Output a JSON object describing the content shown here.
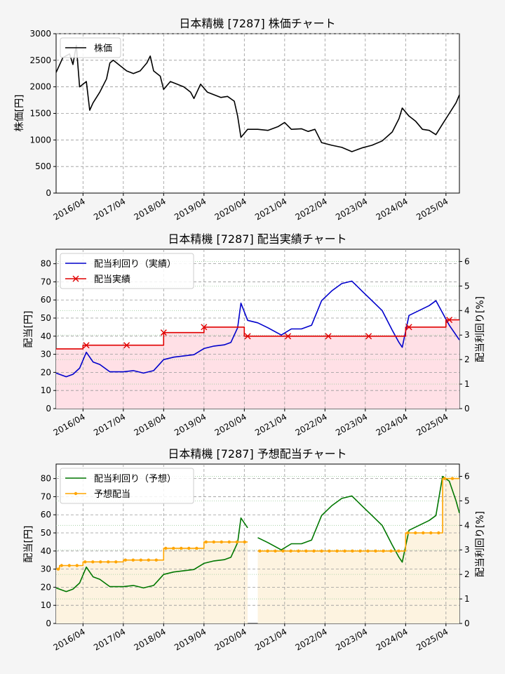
{
  "colors": {
    "price": "#000000",
    "yield_actual": "#0000cc",
    "dividend_actual": "#e00000",
    "yield_forecast": "#007700",
    "dividend_forecast": "#ffa500",
    "fill_actual": "#ffe0e6",
    "fill_forecast": "#fdf3e0",
    "background": "#f5f5f5"
  },
  "chart_data": [
    {
      "type": "line",
      "title": "日本精機 [7287]  株価チャート",
      "ylabel": "株価[円]",
      "ylim": [
        0,
        3000
      ],
      "yticks": [
        "0",
        "500",
        "1000",
        "1500",
        "2000",
        "2500",
        "3000"
      ],
      "xlim": [
        "2015-08",
        "2025-08"
      ],
      "xticks": [
        "2016/04",
        "2017/04",
        "2018/04",
        "2019/04",
        "2020/04",
        "2021/04",
        "2022/04",
        "2023/04",
        "2024/04",
        "2025/04"
      ],
      "grid": true,
      "legend": "top-left",
      "series": [
        {
          "name": "株価",
          "points": [
            [
              "2015-08",
              2270
            ],
            [
              "2015-10",
              2550
            ],
            [
              "2015-12",
              2620
            ],
            [
              "2016-01",
              2420
            ],
            [
              "2016-02",
              2780
            ],
            [
              "2016-03",
              2000
            ],
            [
              "2016-05",
              2100
            ],
            [
              "2016-06",
              1560
            ],
            [
              "2016-07",
              1700
            ],
            [
              "2016-09",
              1900
            ],
            [
              "2016-11",
              2150
            ],
            [
              "2016-12",
              2450
            ],
            [
              "2017-01",
              2500
            ],
            [
              "2017-03",
              2400
            ],
            [
              "2017-05",
              2300
            ],
            [
              "2017-07",
              2250
            ],
            [
              "2017-09",
              2300
            ],
            [
              "2017-11",
              2450
            ],
            [
              "2017-12",
              2580
            ],
            [
              "2018-01",
              2300
            ],
            [
              "2018-03",
              2200
            ],
            [
              "2018-04",
              1950
            ],
            [
              "2018-06",
              2100
            ],
            [
              "2018-08",
              2050
            ],
            [
              "2018-10",
              2000
            ],
            [
              "2018-12",
              1900
            ],
            [
              "2019-01",
              1780
            ],
            [
              "2019-03",
              2050
            ],
            [
              "2019-05",
              1900
            ],
            [
              "2019-07",
              1850
            ],
            [
              "2019-09",
              1800
            ],
            [
              "2019-11",
              1820
            ],
            [
              "2020-01",
              1730
            ],
            [
              "2020-02",
              1450
            ],
            [
              "2020-03",
              1050
            ],
            [
              "2020-05",
              1200
            ],
            [
              "2020-08",
              1200
            ],
            [
              "2020-11",
              1180
            ],
            [
              "2021-02",
              1250
            ],
            [
              "2021-04",
              1330
            ],
            [
              "2021-06",
              1200
            ],
            [
              "2021-09",
              1210
            ],
            [
              "2021-11",
              1160
            ],
            [
              "2022-01",
              1200
            ],
            [
              "2022-03",
              950
            ],
            [
              "2022-06",
              900
            ],
            [
              "2022-09",
              860
            ],
            [
              "2022-12",
              780
            ],
            [
              "2023-03",
              850
            ],
            [
              "2023-06",
              900
            ],
            [
              "2023-09",
              980
            ],
            [
              "2023-12",
              1150
            ],
            [
              "2024-02",
              1400
            ],
            [
              "2024-03",
              1600
            ],
            [
              "2024-05",
              1450
            ],
            [
              "2024-07",
              1350
            ],
            [
              "2024-09",
              1200
            ],
            [
              "2024-11",
              1180
            ],
            [
              "2025-01",
              1100
            ],
            [
              "2025-03",
              1300
            ],
            [
              "2025-05",
              1500
            ],
            [
              "2025-07",
              1700
            ],
            [
              "2025-08",
              1850
            ]
          ]
        }
      ]
    },
    {
      "type": "line",
      "title": "日本精機 [7287]  配当実績チャート",
      "ylabel": "配当[円]",
      "y2label": "配当利回り[%]",
      "ylim": [
        0,
        88
      ],
      "yticks": [
        "0",
        "10",
        "20",
        "30",
        "40",
        "50",
        "60",
        "70",
        "80"
      ],
      "y2lim": [
        0,
        6.5
      ],
      "y2ticks": [
        "0",
        "1",
        "2",
        "3",
        "4",
        "5",
        "6"
      ],
      "xlim": [
        "2015-08",
        "2025-08"
      ],
      "xticks": [
        "2016/04",
        "2017/04",
        "2018/04",
        "2019/04",
        "2020/04",
        "2021/04",
        "2022/04",
        "2023/04",
        "2024/04",
        "2025/04"
      ],
      "grid": true,
      "legend": "top-left",
      "series": [
        {
          "name": "配当利回り（実績）",
          "axis": "right",
          "points": [
            [
              "2015-08",
              1.45
            ],
            [
              "2015-11",
              1.3
            ],
            [
              "2016-01",
              1.4
            ],
            [
              "2016-03",
              1.65
            ],
            [
              "2016-05",
              2.3
            ],
            [
              "2016-07",
              1.9
            ],
            [
              "2016-09",
              1.8
            ],
            [
              "2016-12",
              1.5
            ],
            [
              "2017-04",
              1.5
            ],
            [
              "2017-07",
              1.55
            ],
            [
              "2017-10",
              1.45
            ],
            [
              "2018-01",
              1.55
            ],
            [
              "2018-04",
              2.0
            ],
            [
              "2018-07",
              2.1
            ],
            [
              "2018-10",
              2.15
            ],
            [
              "2019-01",
              2.2
            ],
            [
              "2019-04",
              2.45
            ],
            [
              "2019-07",
              2.55
            ],
            [
              "2019-10",
              2.6
            ],
            [
              "2019-12",
              2.7
            ],
            [
              "2020-02",
              3.3
            ],
            [
              "2020-03",
              4.3
            ],
            [
              "2020-05",
              3.6
            ],
            [
              "2020-08",
              3.5
            ],
            [
              "2020-11",
              3.3
            ],
            [
              "2021-03",
              3.0
            ],
            [
              "2021-06",
              3.25
            ],
            [
              "2021-09",
              3.25
            ],
            [
              "2021-12",
              3.4
            ],
            [
              "2022-03",
              4.4
            ],
            [
              "2022-06",
              4.8
            ],
            [
              "2022-09",
              5.1
            ],
            [
              "2022-12",
              5.2
            ],
            [
              "2023-03",
              4.8
            ],
            [
              "2023-06",
              4.4
            ],
            [
              "2023-09",
              4.0
            ],
            [
              "2023-12",
              3.2
            ],
            [
              "2024-02",
              2.7
            ],
            [
              "2024-03",
              2.5
            ],
            [
              "2024-05",
              3.8
            ],
            [
              "2024-08",
              4.0
            ],
            [
              "2024-11",
              4.2
            ],
            [
              "2025-01",
              4.4
            ],
            [
              "2025-03",
              3.9
            ],
            [
              "2025-05",
              3.4
            ],
            [
              "2025-07",
              3.0
            ],
            [
              "2025-08",
              2.8
            ]
          ]
        },
        {
          "name": "配当実績",
          "axis": "left",
          "step": true,
          "markers": [
            "2016-05",
            "2017-05",
            "2018-04",
            "2019-04",
            "2020-05",
            "2021-05",
            "2022-05",
            "2023-05",
            "2024-05",
            "2025-05"
          ],
          "points": [
            [
              "2015-08",
              33
            ],
            [
              "2016-04",
              35
            ],
            [
              "2018-04",
              42
            ],
            [
              "2019-04",
              45
            ],
            [
              "2020-04",
              40
            ],
            [
              "2024-04",
              45
            ],
            [
              "2025-04",
              49
            ],
            [
              "2025-08",
              49
            ]
          ]
        }
      ]
    },
    {
      "type": "line",
      "title": "日本精機 [7287]  予想配当チャート",
      "ylabel": "配当[円]",
      "y2label": "配当利回り[%]",
      "ylim": [
        0,
        88
      ],
      "yticks": [
        "0",
        "10",
        "20",
        "30",
        "40",
        "50",
        "60",
        "70",
        "80"
      ],
      "y2lim": [
        0,
        6.5
      ],
      "y2ticks": [
        "0",
        "1",
        "2",
        "3",
        "4",
        "5",
        "6"
      ],
      "xlim": [
        "2015-08",
        "2025-08"
      ],
      "xticks": [
        "2016/04",
        "2017/04",
        "2018/04",
        "2019/04",
        "2020/04",
        "2021/04",
        "2022/04",
        "2023/04",
        "2024/04",
        "2025/04"
      ],
      "grid": true,
      "legend": "top-left",
      "series": [
        {
          "name": "配当利回り（予想）",
          "axis": "right",
          "segments": [
            [
              [
                "2015-08",
                1.45
              ],
              [
                "2015-11",
                1.3
              ],
              [
                "2016-01",
                1.4
              ],
              [
                "2016-03",
                1.65
              ],
              [
                "2016-05",
                2.3
              ],
              [
                "2016-07",
                1.9
              ],
              [
                "2016-09",
                1.8
              ],
              [
                "2016-12",
                1.5
              ],
              [
                "2017-04",
                1.5
              ],
              [
                "2017-07",
                1.55
              ],
              [
                "2017-10",
                1.45
              ],
              [
                "2018-01",
                1.55
              ],
              [
                "2018-04",
                2.0
              ],
              [
                "2018-07",
                2.1
              ],
              [
                "2018-10",
                2.15
              ],
              [
                "2019-01",
                2.2
              ],
              [
                "2019-04",
                2.45
              ],
              [
                "2019-07",
                2.55
              ],
              [
                "2019-10",
                2.6
              ],
              [
                "2019-12",
                2.7
              ],
              [
                "2020-02",
                3.3
              ],
              [
                "2020-03",
                4.3
              ],
              [
                "2020-05",
                3.9
              ]
            ],
            [
              [
                "2020-08",
                3.5
              ],
              [
                "2020-11",
                3.3
              ],
              [
                "2021-03",
                3.0
              ],
              [
                "2021-06",
                3.25
              ],
              [
                "2021-09",
                3.25
              ],
              [
                "2021-12",
                3.4
              ],
              [
                "2022-03",
                4.4
              ],
              [
                "2022-06",
                4.8
              ],
              [
                "2022-09",
                5.1
              ],
              [
                "2022-12",
                5.2
              ],
              [
                "2023-03",
                4.8
              ],
              [
                "2023-06",
                4.4
              ],
              [
                "2023-09",
                4.0
              ],
              [
                "2023-12",
                3.2
              ],
              [
                "2024-02",
                2.7
              ],
              [
                "2024-03",
                2.5
              ],
              [
                "2024-05",
                3.8
              ],
              [
                "2024-08",
                4.0
              ],
              [
                "2024-11",
                4.2
              ],
              [
                "2025-01",
                4.4
              ],
              [
                "2025-03",
                6.0
              ],
              [
                "2025-05",
                5.8
              ],
              [
                "2025-07",
                5.0
              ],
              [
                "2025-08",
                4.5
              ]
            ]
          ]
        },
        {
          "name": "予想配当",
          "axis": "left",
          "step": true,
          "segments": [
            [
              [
                "2015-08",
                30
              ],
              [
                "2015-09",
                32
              ],
              [
                "2016-04",
                34
              ],
              [
                "2017-04",
                35
              ],
              [
                "2018-04",
                41.5
              ],
              [
                "2019-04",
                45
              ],
              [
                "2020-05",
                45
              ]
            ],
            [
              [
                "2020-08",
                40
              ],
              [
                "2024-04",
                50
              ],
              [
                "2025-03",
                80
              ],
              [
                "2025-08",
                80
              ]
            ]
          ]
        }
      ]
    }
  ]
}
